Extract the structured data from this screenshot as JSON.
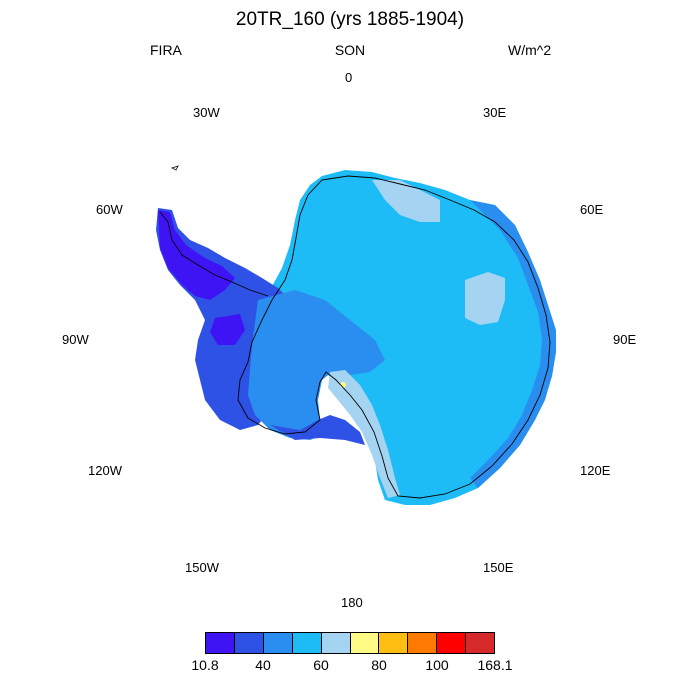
{
  "title": "20TR_160 (yrs 1885-1904)",
  "left_label": "FIRA",
  "center_label": "SON",
  "right_label": "W/m^2",
  "longitude_labels": {
    "lon_0": "0",
    "lon_30e": "30E",
    "lon_60e": "60E",
    "lon_90e": "90E",
    "lon_120e": "120E",
    "lon_150e": "150E",
    "lon_180": "180",
    "lon_150w": "150W",
    "lon_120w": "120W",
    "lon_90w": "90W",
    "lon_60w": "60W",
    "lon_30w": "30W"
  },
  "colorbar": {
    "colors": [
      "#3e14f5",
      "#2f52e6",
      "#2a8ef0",
      "#1ebcf6",
      "#a4d4f2",
      "#fffb86",
      "#ffbf12",
      "#ff7a00",
      "#ff0000",
      "#d62a2a"
    ],
    "tick_labels": [
      "10.8",
      "40",
      "60",
      "80",
      "100",
      "168.1"
    ]
  },
  "map_colors": {
    "deep": "#3e14f5",
    "mid": "#2f52e6",
    "blue": "#2a8ef0",
    "cyan": "#1ebcf6",
    "pale": "#a4d4f2",
    "yellow": "#fffb86"
  }
}
